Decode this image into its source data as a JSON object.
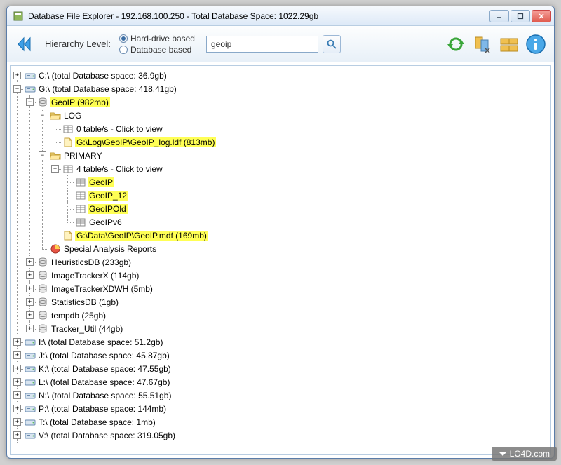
{
  "window": {
    "title": "Database File Explorer - 192.168.100.250 - Total Database Space: 1022.29gb"
  },
  "toolbar": {
    "hierarchy_label": "Hierarchy Level:",
    "radio_hard_drive": "Hard-drive based",
    "radio_database": "Database based",
    "radio_selected": "hard",
    "search_value": "geoip"
  },
  "colors": {
    "highlight": "#ffff55",
    "titlebar_top": "#f6f9fd",
    "titlebar_bot": "#dde9f7",
    "toolbar_top": "#fdfefe",
    "toolbar_bot": "#e8f0f8",
    "border": "#5a7ca8"
  },
  "tree": [
    {
      "exp": "+",
      "icon": "drive",
      "label": "C:\\ (total Database space: 36.9gb)"
    },
    {
      "exp": "-",
      "icon": "drive",
      "label": "G:\\ (total Database space: 418.41gb)",
      "children": [
        {
          "exp": "-",
          "icon": "db",
          "label": "GeoIP (982mb)",
          "hl": true,
          "children": [
            {
              "exp": "-",
              "icon": "folder-open",
              "label": "LOG",
              "children": [
                {
                  "exp": "",
                  "icon": "table",
                  "label": "0 table/s - Click to view"
                },
                {
                  "exp": "",
                  "icon": "file",
                  "label": "G:\\Log\\GeoIP\\GeoIP_log.ldf (813mb)",
                  "hl": true
                }
              ]
            },
            {
              "exp": "-",
              "icon": "folder-open",
              "label": "PRIMARY",
              "children": [
                {
                  "exp": "-",
                  "icon": "table",
                  "label": "4 table/s - Click to view",
                  "children": [
                    {
                      "exp": "",
                      "icon": "table",
                      "label": "GeoIP",
                      "hl": true
                    },
                    {
                      "exp": "",
                      "icon": "table",
                      "label": "GeoIP_12",
                      "hl": true
                    },
                    {
                      "exp": "",
                      "icon": "table",
                      "label": "GeoIPOld",
                      "hl": true
                    },
                    {
                      "exp": "",
                      "icon": "table",
                      "label": "GeoIPv6"
                    }
                  ]
                },
                {
                  "exp": "",
                  "icon": "file",
                  "label": "G:\\Data\\GeoIP\\GeoIP.mdf (169mb)",
                  "hl": true
                }
              ]
            },
            {
              "exp": "",
              "icon": "report",
              "label": "Special Analysis Reports"
            }
          ]
        },
        {
          "exp": "+",
          "icon": "db",
          "label": "HeuristicsDB (233gb)"
        },
        {
          "exp": "+",
          "icon": "db",
          "label": "ImageTrackerX (114gb)"
        },
        {
          "exp": "+",
          "icon": "db",
          "label": "ImageTrackerXDWH (5mb)"
        },
        {
          "exp": "+",
          "icon": "db",
          "label": "StatisticsDB (1gb)"
        },
        {
          "exp": "+",
          "icon": "db",
          "label": "tempdb (25gb)"
        },
        {
          "exp": "+",
          "icon": "db",
          "label": "Tracker_Util (44gb)"
        }
      ]
    },
    {
      "exp": "+",
      "icon": "drive",
      "label": "I:\\ (total Database space: 51.2gb)"
    },
    {
      "exp": "+",
      "icon": "drive",
      "label": "J:\\ (total Database space: 45.87gb)"
    },
    {
      "exp": "+",
      "icon": "drive",
      "label": "K:\\ (total Database space: 47.55gb)"
    },
    {
      "exp": "+",
      "icon": "drive",
      "label": "L:\\ (total Database space: 47.67gb)"
    },
    {
      "exp": "+",
      "icon": "drive",
      "label": "N:\\ (total Database space: 55.51gb)"
    },
    {
      "exp": "+",
      "icon": "drive",
      "label": "P:\\ (total Database space: 144mb)"
    },
    {
      "exp": "+",
      "icon": "drive",
      "label": "T:\\ (total Database space: 1mb)"
    },
    {
      "exp": "+",
      "icon": "drive",
      "label": "V:\\ (total Database space: 319.05gb)"
    }
  ],
  "watermark": "LO4D.com"
}
